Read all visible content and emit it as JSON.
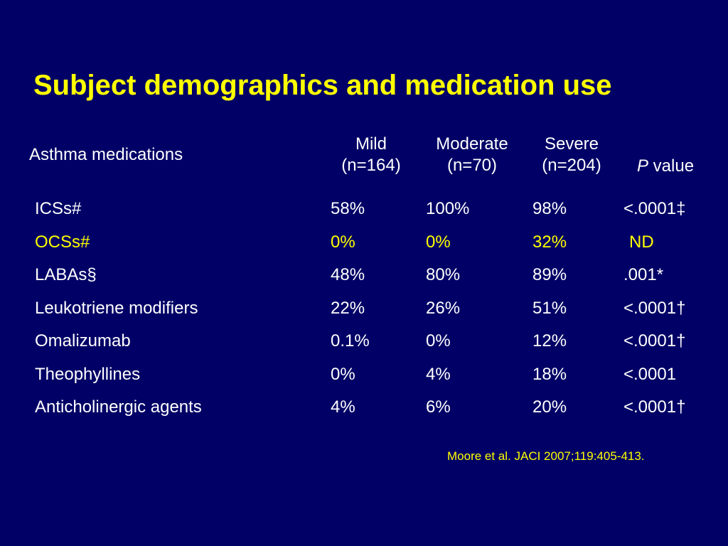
{
  "title": "Subject demographics and medication use",
  "header": {
    "medications_label": "Asthma medications",
    "mild_line1": "Mild",
    "mild_line2": "(n=164)",
    "moderate_line1": "Moderate",
    "moderate_line2": "(n=70)",
    "severe_line1": "Severe",
    "severe_line2": "(n=204)",
    "p_italic": "P",
    "p_rest": " value"
  },
  "rows": [
    {
      "name": "ICSs#",
      "mild": "58%",
      "moderate": "100%",
      "severe": "98%",
      "p": "<.0001‡"
    },
    {
      "name": "OCSs#",
      "mild": "0%",
      "moderate": "0%",
      "severe": "32%",
      "p": "ND"
    },
    {
      "name": "LABAs§",
      "mild": "48%",
      "moderate": "80%",
      "severe": "89%",
      "p": ".001*"
    },
    {
      "name": "Leukotriene modifiers",
      "mild": "22%",
      "moderate": "26%",
      "severe": "51%",
      "p": "<.0001†"
    },
    {
      "name": "Omalizumab",
      "mild": "0.1%",
      "moderate": "0%",
      "severe": "12%",
      "p": "<.0001†"
    },
    {
      "name": "Theophyllines",
      "mild": "0%",
      "moderate": "4%",
      "severe": "18%",
      "p": "<.0001"
    },
    {
      "name": "Anticholinergic agents",
      "mild": "4%",
      "moderate": "6%",
      "severe": "20%",
      "p": "<.0001†"
    }
  ],
  "citation": "Moore et al. JACI 2007;119:405-413.",
  "colors": {
    "background": "#000066",
    "title": "#ffff00",
    "text": "#ffffff",
    "highlight": "#ffff00"
  }
}
